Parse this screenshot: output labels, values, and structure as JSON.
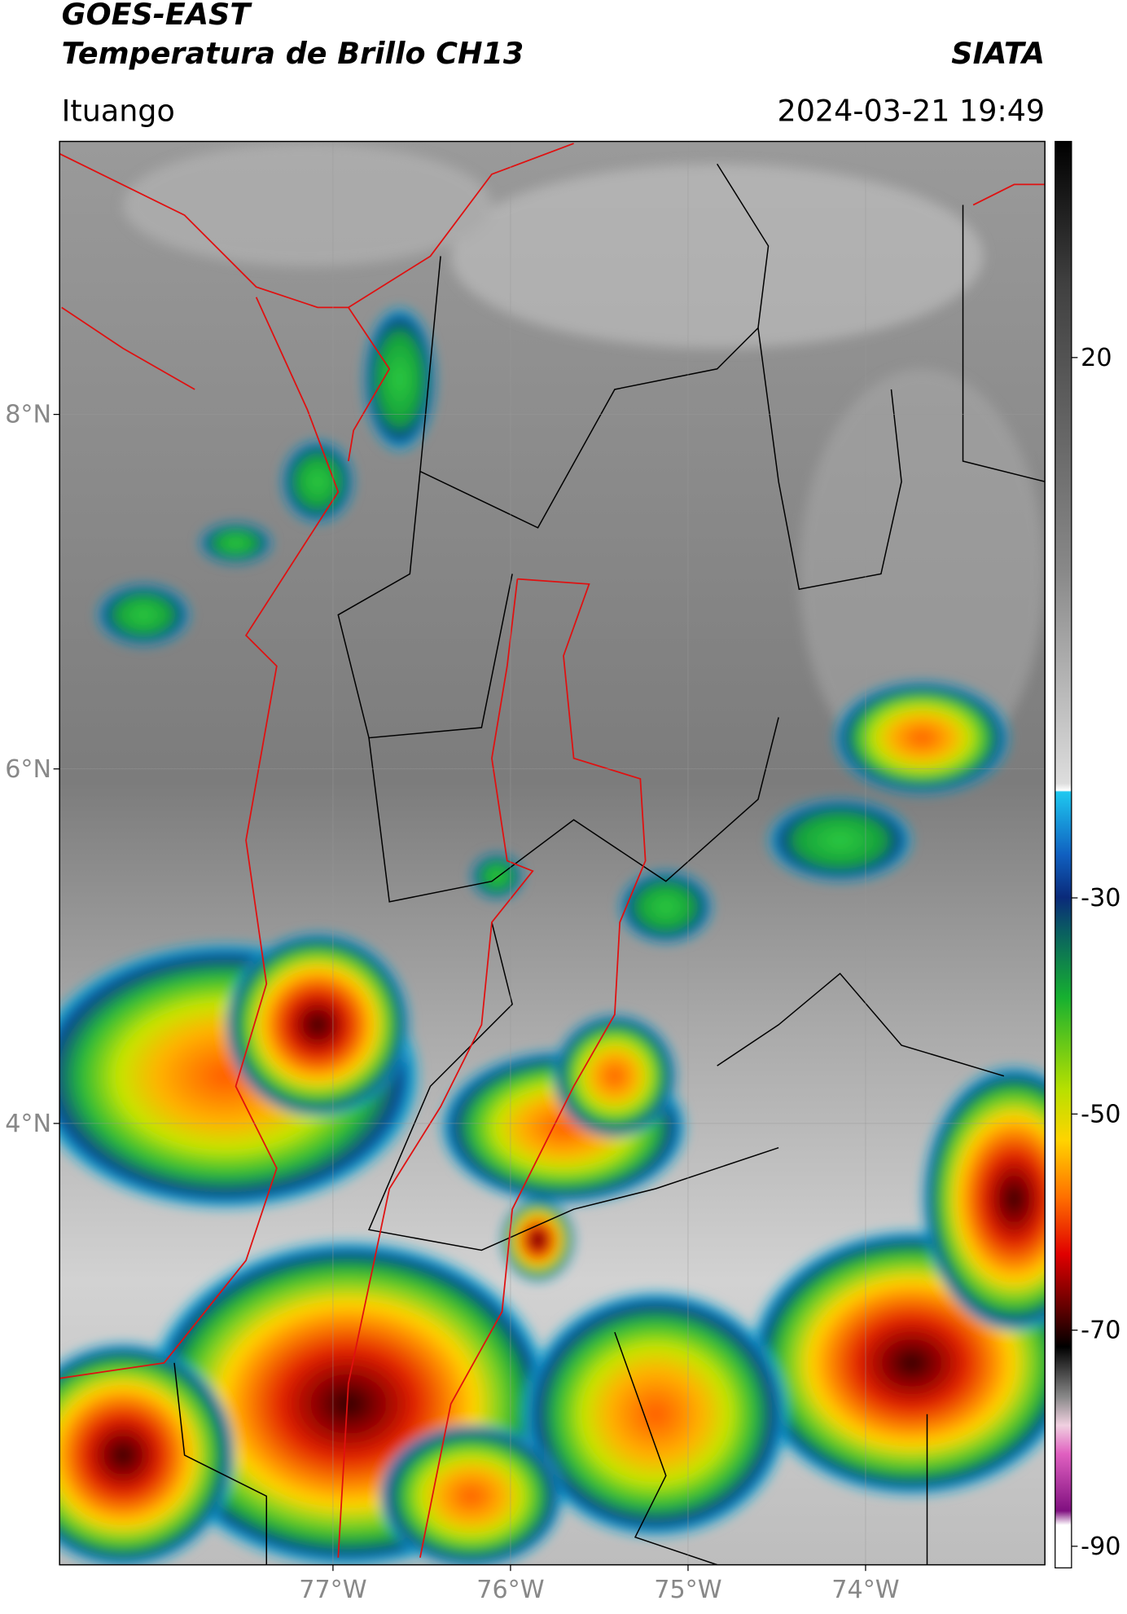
{
  "header": {
    "satellite": "GOES-EAST",
    "product": "Temperatura de Brillo CH13",
    "source": "SIATA",
    "location": "Ituango",
    "timestamp": "2024-03-21 19:49"
  },
  "map": {
    "lat_range": [
      1.51,
      9.54
    ],
    "lon_range": [
      -78.54,
      -72.99
    ],
    "lat_ticks": [
      {
        "value": 8,
        "label": "8°N"
      },
      {
        "value": 6,
        "label": "6°N"
      },
      {
        "value": 4,
        "label": "4°N"
      }
    ],
    "lon_ticks": [
      {
        "value": -77,
        "label": "77°W"
      },
      {
        "value": -76,
        "label": "76°W"
      },
      {
        "value": -75,
        "label": "75°W"
      },
      {
        "value": -74,
        "label": "74°W"
      }
    ]
  },
  "colorbar": {
    "range": [
      -92,
      40
    ],
    "ticks": [
      20,
      -30,
      -50,
      -70,
      -90
    ]
  }
}
